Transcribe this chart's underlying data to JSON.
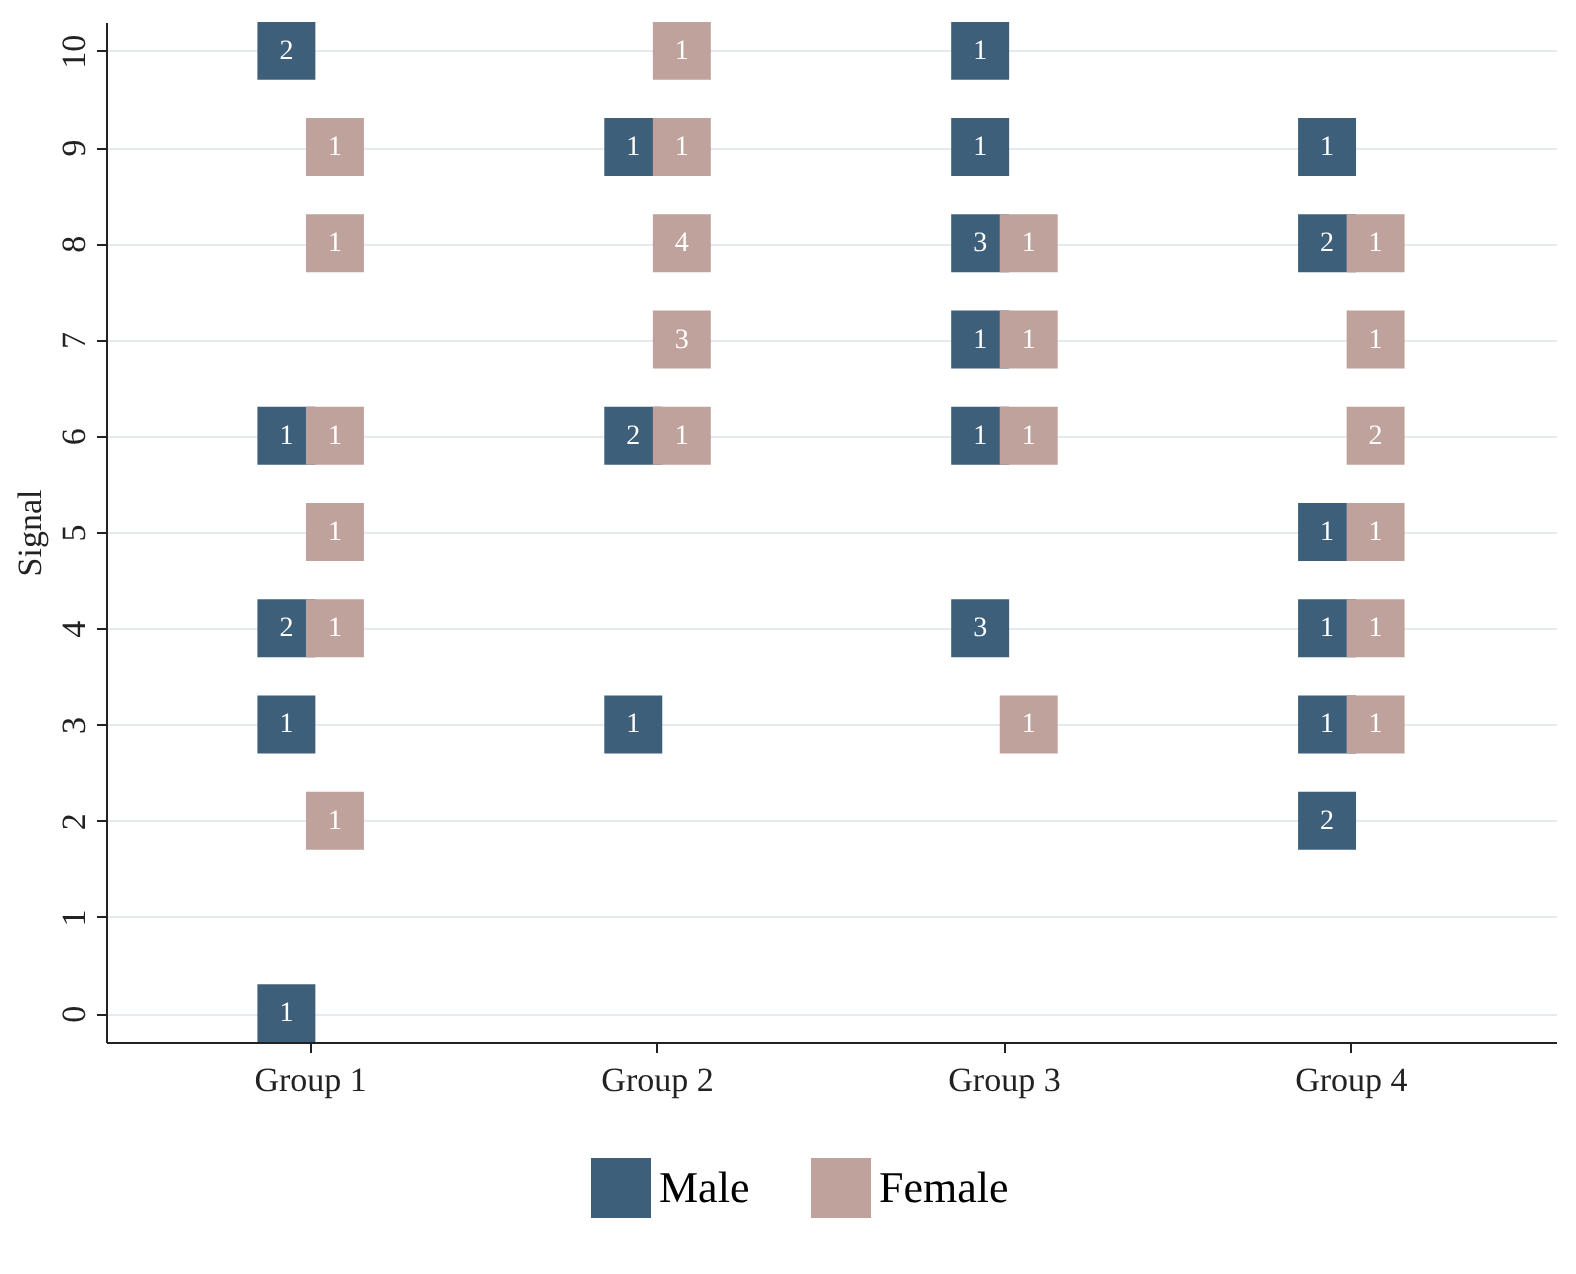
{
  "chart_data": {
    "type": "scatter",
    "ylabel": "Signal",
    "categories": [
      "Group 1",
      "Group 2",
      "Group 3",
      "Group 4"
    ],
    "ylim": [
      -0.3,
      10.3
    ],
    "yticks": [
      0,
      1,
      2,
      3,
      4,
      5,
      6,
      7,
      8,
      9,
      10
    ],
    "grid": "y",
    "legend": "bottom",
    "marker": "square",
    "series": [
      {
        "name": "Male",
        "color": "#3e5f7a",
        "x": [
          "Group 1",
          "Group 1",
          "Group 1",
          "Group 1",
          "Group 1",
          "Group 2",
          "Group 2",
          "Group 2",
          "Group 3",
          "Group 3",
          "Group 3",
          "Group 3",
          "Group 3",
          "Group 3",
          "Group 4",
          "Group 4",
          "Group 4",
          "Group 4",
          "Group 4",
          "Group 4"
        ],
        "values": [
          10,
          6,
          4,
          3,
          0,
          9,
          6,
          3,
          10,
          9,
          8,
          7,
          6,
          4,
          9,
          8,
          5,
          4,
          3,
          2
        ]
      },
      {
        "name": "Female",
        "color": "#c0a29c",
        "x": [
          "Group 1",
          "Group 1",
          "Group 1",
          "Group 1",
          "Group 1",
          "Group 1",
          "Group 2",
          "Group 2",
          "Group 2",
          "Group 2",
          "Group 2",
          "Group 3",
          "Group 3",
          "Group 3",
          "Group 3",
          "Group 4",
          "Group 4",
          "Group 4",
          "Group 4",
          "Group 4",
          "Group 4"
        ],
        "values": [
          9,
          8,
          6,
          5,
          4,
          2,
          10,
          9,
          8,
          7,
          6,
          8,
          7,
          6,
          3,
          8,
          7,
          6,
          5,
          4,
          3
        ]
      }
    ],
    "annotations": [
      {
        "text": "2",
        "x": "Group 1",
        "y": 10
      },
      {
        "text": "1",
        "x": "Group 1",
        "y": 6
      },
      {
        "text": "2",
        "x": "Group 1",
        "y": 4
      },
      {
        "text": "1",
        "x": "Group 1",
        "y": 3
      },
      {
        "text": "1",
        "x": "Group 1",
        "y": 0
      },
      {
        "text": "1",
        "x": "Group 2",
        "y": 9
      },
      {
        "text": "2",
        "x": "Group 2",
        "y": 6
      },
      {
        "text": "1",
        "x": "Group 2",
        "y": 3
      },
      {
        "text": "1",
        "x": "Group 3",
        "y": 10
      },
      {
        "text": "1",
        "x": "Group 3",
        "y": 9
      },
      {
        "text": "3",
        "x": "Group 3",
        "y": 8
      },
      {
        "text": "1",
        "x": "Group 3",
        "y": 7
      },
      {
        "text": "1",
        "x": "Group 3",
        "y": 6
      },
      {
        "text": "3",
        "x": "Group 3",
        "y": 4
      },
      {
        "text": "1",
        "x": "Group 4",
        "y": 9
      },
      {
        "text": "2",
        "x": "Group 4",
        "y": 8
      },
      {
        "text": "1",
        "x": "Group 4",
        "y": 5
      },
      {
        "text": "1",
        "x": "Group 4",
        "y": 4
      },
      {
        "text": "1",
        "x": "Group 4",
        "y": 3
      },
      {
        "text": "2",
        "x": "Group 4",
        "y": 2
      },
      {
        "text": "1",
        "x": "Group 1",
        "y": 9
      },
      {
        "text": "1",
        "x": "Group 1",
        "y": 8
      },
      {
        "text": "1",
        "x": "Group 1",
        "y": 6
      },
      {
        "text": "1",
        "x": "Group 1",
        "y": 5
      },
      {
        "text": "1",
        "x": "Group 1",
        "y": 4
      },
      {
        "text": "1",
        "x": "Group 1",
        "y": 2
      },
      {
        "text": "1",
        "x": "Group 2",
        "y": 10
      },
      {
        "text": "1",
        "x": "Group 2",
        "y": 9
      },
      {
        "text": "4",
        "x": "Group 2",
        "y": 8
      },
      {
        "text": "3",
        "x": "Group 2",
        "y": 7
      },
      {
        "text": "1",
        "x": "Group 2",
        "y": 6
      },
      {
        "text": "1",
        "x": "Group 3",
        "y": 8
      },
      {
        "text": "1",
        "x": "Group 3",
        "y": 7
      },
      {
        "text": "1",
        "x": "Group 3",
        "y": 6
      },
      {
        "text": "1",
        "x": "Group 3",
        "y": 3
      },
      {
        "text": "1",
        "x": "Group 4",
        "y": 8
      },
      {
        "text": "1",
        "x": "Group 4",
        "y": 7
      },
      {
        "text": "2",
        "x": "Group 4",
        "y": 6
      },
      {
        "text": "1",
        "x": "Group 4",
        "y": 5
      },
      {
        "text": "1",
        "x": "Group 4",
        "y": 4
      },
      {
        "text": "1",
        "x": "Group 4",
        "y": 3
      }
    ]
  }
}
